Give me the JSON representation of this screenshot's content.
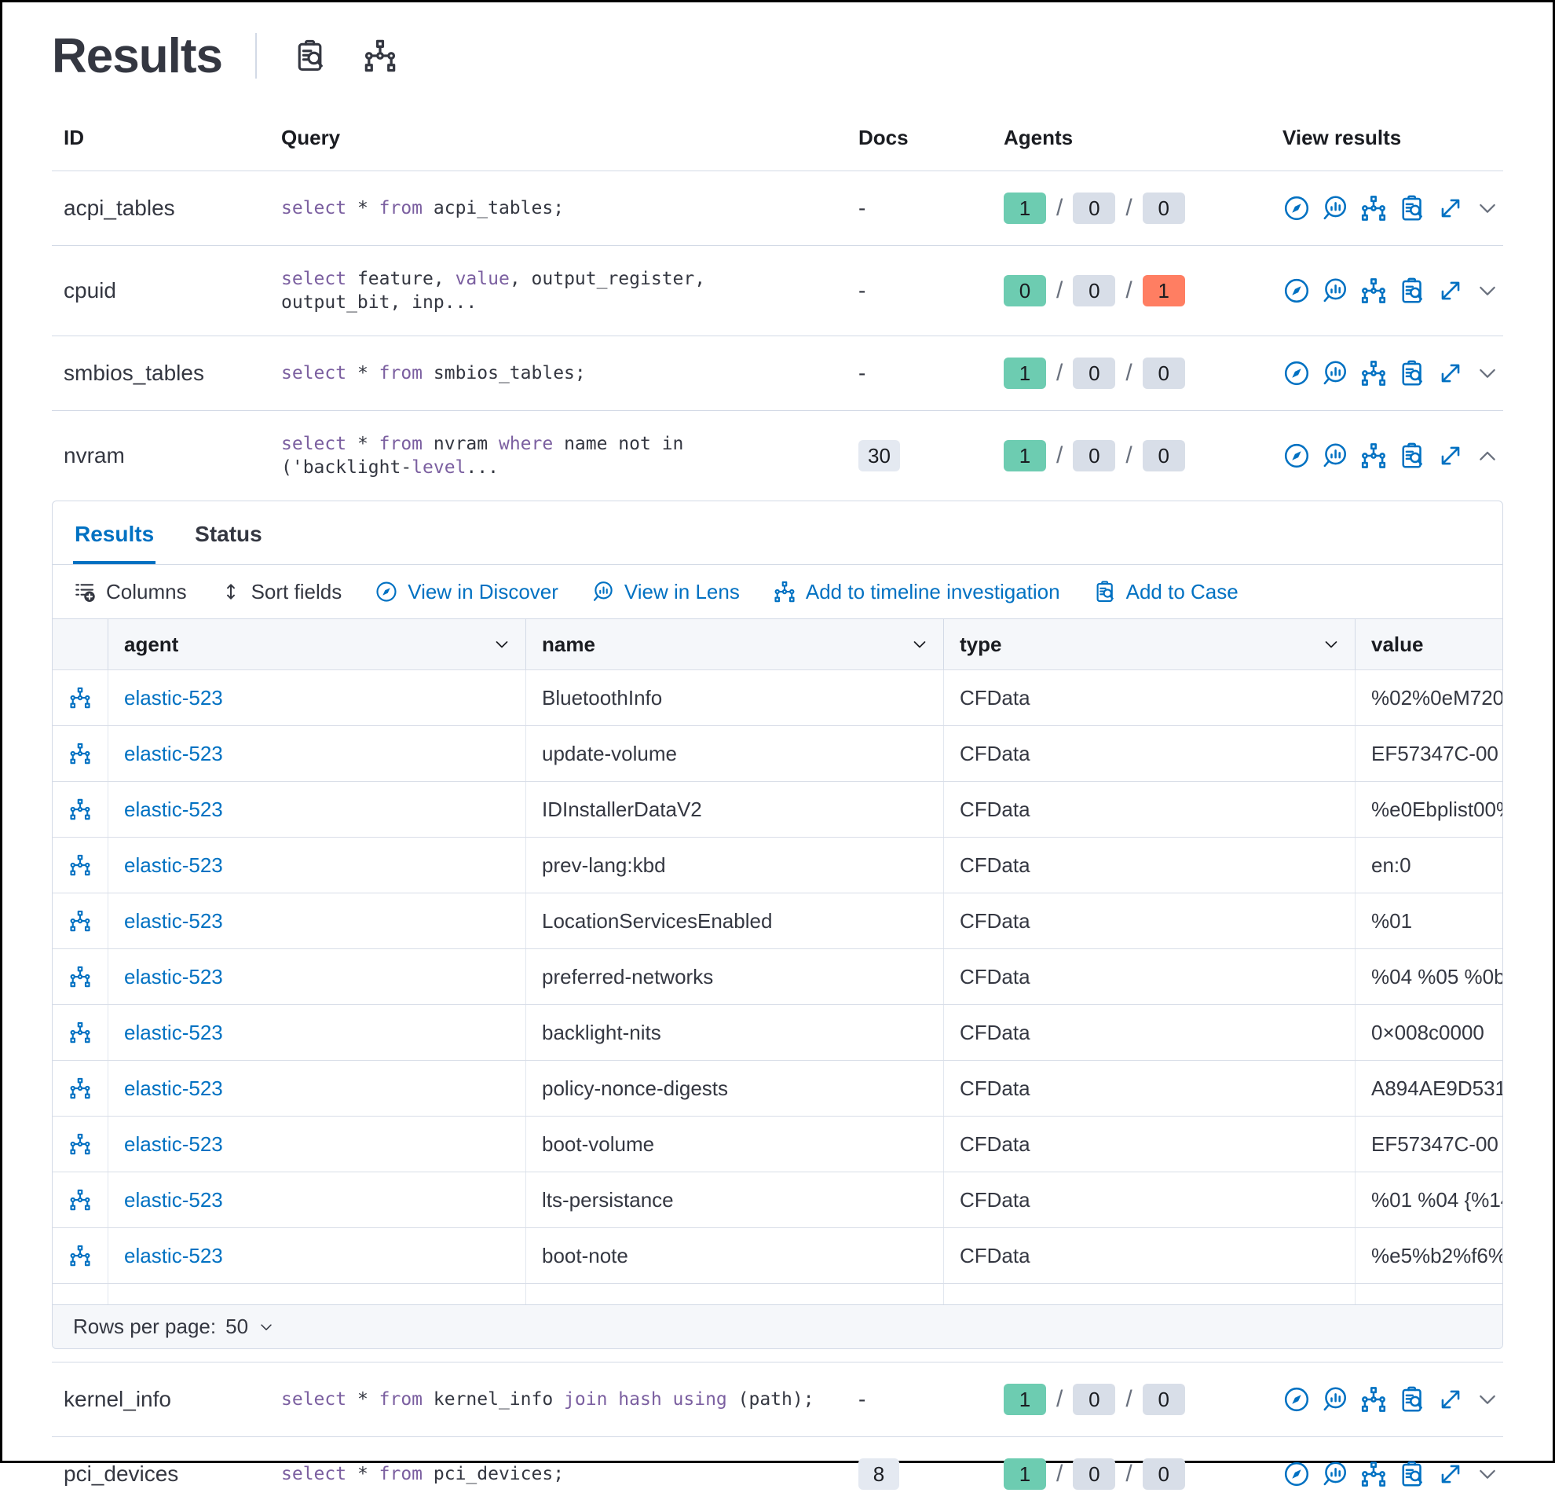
{
  "page": {
    "title": "Results"
  },
  "main_table": {
    "columns": [
      "ID",
      "Query",
      "Docs",
      "Agents",
      "View results"
    ],
    "actions": [
      "discover",
      "lens",
      "timeline",
      "inspect",
      "expand"
    ],
    "rows": [
      {
        "id": "acpi_tables",
        "query": [
          [
            "select",
            1
          ],
          [
            " * ",
            0
          ],
          [
            "from",
            1
          ],
          [
            " acpi_tables;",
            0
          ]
        ],
        "docs": "-",
        "docs_badge": false,
        "agents": [
          {
            "value": "1",
            "color": "success"
          },
          {
            "value": "0",
            "color": "default"
          },
          {
            "value": "0",
            "color": "default"
          }
        ],
        "expanded": false
      },
      {
        "id": "cpuid",
        "query": [
          [
            "select",
            1
          ],
          [
            " feature, ",
            0
          ],
          [
            "value",
            1
          ],
          [
            ", output_register, output_bit, inp...",
            0
          ]
        ],
        "docs": "-",
        "docs_badge": false,
        "agents": [
          {
            "value": "0",
            "color": "success"
          },
          {
            "value": "0",
            "color": "default"
          },
          {
            "value": "1",
            "color": "danger"
          }
        ],
        "expanded": false
      },
      {
        "id": "smbios_tables",
        "query": [
          [
            "select",
            1
          ],
          [
            " * ",
            0
          ],
          [
            "from",
            1
          ],
          [
            " smbios_tables;",
            0
          ]
        ],
        "docs": "-",
        "docs_badge": false,
        "agents": [
          {
            "value": "1",
            "color": "success"
          },
          {
            "value": "0",
            "color": "default"
          },
          {
            "value": "0",
            "color": "default"
          }
        ],
        "expanded": false
      },
      {
        "id": "nvram",
        "query": [
          [
            "select",
            1
          ],
          [
            " * ",
            0
          ],
          [
            "from",
            1
          ],
          [
            " nvram ",
            0
          ],
          [
            "where",
            1
          ],
          [
            " name not in ('backlight-",
            0
          ],
          [
            "level",
            1
          ],
          [
            "...",
            0
          ]
        ],
        "docs": "30",
        "docs_badge": true,
        "agents": [
          {
            "value": "1",
            "color": "success"
          },
          {
            "value": "0",
            "color": "default"
          },
          {
            "value": "0",
            "color": "default"
          }
        ],
        "expanded": true
      },
      {
        "id": "kernel_info",
        "query": [
          [
            "select",
            1
          ],
          [
            " * ",
            0
          ],
          [
            "from",
            1
          ],
          [
            " kernel_info ",
            0
          ],
          [
            "join",
            1
          ],
          [
            " ",
            0
          ],
          [
            "hash",
            1
          ],
          [
            " ",
            0
          ],
          [
            "using",
            1
          ],
          [
            " (path);",
            0
          ]
        ],
        "docs": "-",
        "docs_badge": false,
        "agents": [
          {
            "value": "1",
            "color": "success"
          },
          {
            "value": "0",
            "color": "default"
          },
          {
            "value": "0",
            "color": "default"
          }
        ],
        "expanded": false
      },
      {
        "id": "pci_devices",
        "query": [
          [
            "select",
            1
          ],
          [
            " * ",
            0
          ],
          [
            "from",
            1
          ],
          [
            " pci_devices;",
            0
          ]
        ],
        "docs": "8",
        "docs_badge": true,
        "agents": [
          {
            "value": "1",
            "color": "success"
          },
          {
            "value": "0",
            "color": "default"
          },
          {
            "value": "0",
            "color": "default"
          }
        ],
        "expanded": false
      }
    ]
  },
  "panel": {
    "tabs": [
      {
        "label": "Results",
        "active": true
      },
      {
        "label": "Status",
        "active": false
      }
    ],
    "toolbar": [
      {
        "icon": "columns",
        "label": "Columns",
        "style": "dark"
      },
      {
        "icon": "sort",
        "label": "Sort fields",
        "style": "dark"
      },
      {
        "icon": "discover",
        "label": "View in Discover",
        "style": "blue"
      },
      {
        "icon": "lens",
        "label": "View in Lens",
        "style": "blue"
      },
      {
        "icon": "timeline",
        "label": "Add to timeline investigation",
        "style": "blue"
      },
      {
        "icon": "case",
        "label": "Add to Case",
        "style": "blue"
      }
    ],
    "grid": {
      "columns": [
        "agent",
        "name",
        "type",
        "value"
      ],
      "rows": [
        {
          "agent": "elastic-523",
          "name": "BluetoothInfo",
          "type": "CFData",
          "value": "%02%0eM720"
        },
        {
          "agent": "elastic-523",
          "name": "update-volume",
          "type": "CFData",
          "value": "EF57347C-00"
        },
        {
          "agent": "elastic-523",
          "name": "IDInstallerDataV2",
          "type": "CFData",
          "value": "%e0Ebplist00%"
        },
        {
          "agent": "elastic-523",
          "name": "prev-lang:kbd",
          "type": "CFData",
          "value": "en:0"
        },
        {
          "agent": "elastic-523",
          "name": "LocationServicesEnabled",
          "type": "CFData",
          "value": "%01"
        },
        {
          "agent": "elastic-523",
          "name": "preferred-networks",
          "type": "CFData",
          "value": "%04 %05 %0b"
        },
        {
          "agent": "elastic-523",
          "name": "backlight-nits",
          "type": "CFData",
          "value": "0×008c0000"
        },
        {
          "agent": "elastic-523",
          "name": "policy-nonce-digests",
          "type": "CFData",
          "value": "A894AE9D531"
        },
        {
          "agent": "elastic-523",
          "name": "boot-volume",
          "type": "CFData",
          "value": "EF57347C-00"
        },
        {
          "agent": "elastic-523",
          "name": "lts-persistance",
          "type": "CFData",
          "value": "%01 %04 {%14"
        },
        {
          "agent": "elastic-523",
          "name": "boot-note",
          "type": "CFData",
          "value": "%e5%b2%f6%"
        }
      ]
    },
    "footer": {
      "label": "Rows per page:",
      "value": "50"
    }
  }
}
